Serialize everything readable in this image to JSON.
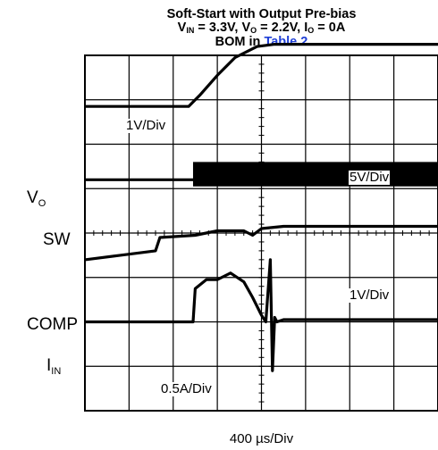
{
  "chart_data": {
    "type": "line",
    "title_line1": "Soft-Start with Output Pre-bias",
    "title_line2": {
      "vin_sym": "V",
      "vin_sub": "IN",
      "vin_val": " = 3.3V, ",
      "vo_sym": "V",
      "vo_sub": "O",
      "vo_val": " = 2.2V, ",
      "io_sym": "I",
      "io_sub": "O",
      "io_val": " = 0A"
    },
    "title_line3": {
      "prefix": "BOM in ",
      "link": "Table 2"
    },
    "link_color": "#1f3fd6",
    "xlabel": "400 µs/Div",
    "grid": "on",
    "grid_divisions": {
      "x": 8,
      "y": 8
    },
    "xlim": [
      0,
      8
    ],
    "ylim": [
      0,
      8
    ],
    "channels": [
      {
        "label_sym": "V",
        "label_sub": "O",
        "scale": "1V/Div",
        "x": [
          0,
          2.35,
          2.6,
          3.0,
          3.4,
          3.9,
          4.3,
          5.0,
          8.0
        ],
        "y": [
          6.85,
          6.85,
          7.1,
          7.55,
          7.95,
          8.2,
          8.25,
          8.25,
          8.25
        ]
      },
      {
        "label": "SW",
        "scale": "5V/Div",
        "x": [
          0,
          2.45,
          8.0
        ],
        "y": [
          5.2,
          5.2,
          5.2
        ],
        "switching_start": 2.45,
        "switching_high": 5.6,
        "switching_low": 5.05
      },
      {
        "label": "COMP",
        "scale": "1V/Div",
        "x": [
          0,
          0.8,
          1.6,
          1.7,
          2.5,
          3.0,
          3.6,
          3.8,
          4.0,
          4.5,
          5.5,
          8.0
        ],
        "y": [
          3.4,
          3.5,
          3.6,
          3.9,
          3.95,
          4.05,
          4.05,
          3.95,
          4.1,
          4.15,
          4.15,
          4.15
        ]
      },
      {
        "label_sym": "I",
        "label_sub": "IN",
        "scale": "0.5A/Div",
        "x": [
          0,
          2.45,
          2.5,
          2.75,
          3.0,
          3.3,
          3.6,
          3.8,
          4.0,
          4.1,
          4.2,
          4.25,
          4.3,
          4.35,
          4.5,
          8.0
        ],
        "y": [
          2.0,
          2.0,
          2.75,
          2.95,
          2.95,
          3.1,
          2.9,
          2.55,
          2.15,
          2.0,
          3.4,
          0.9,
          2.1,
          2.0,
          2.05,
          2.05
        ]
      }
    ]
  }
}
